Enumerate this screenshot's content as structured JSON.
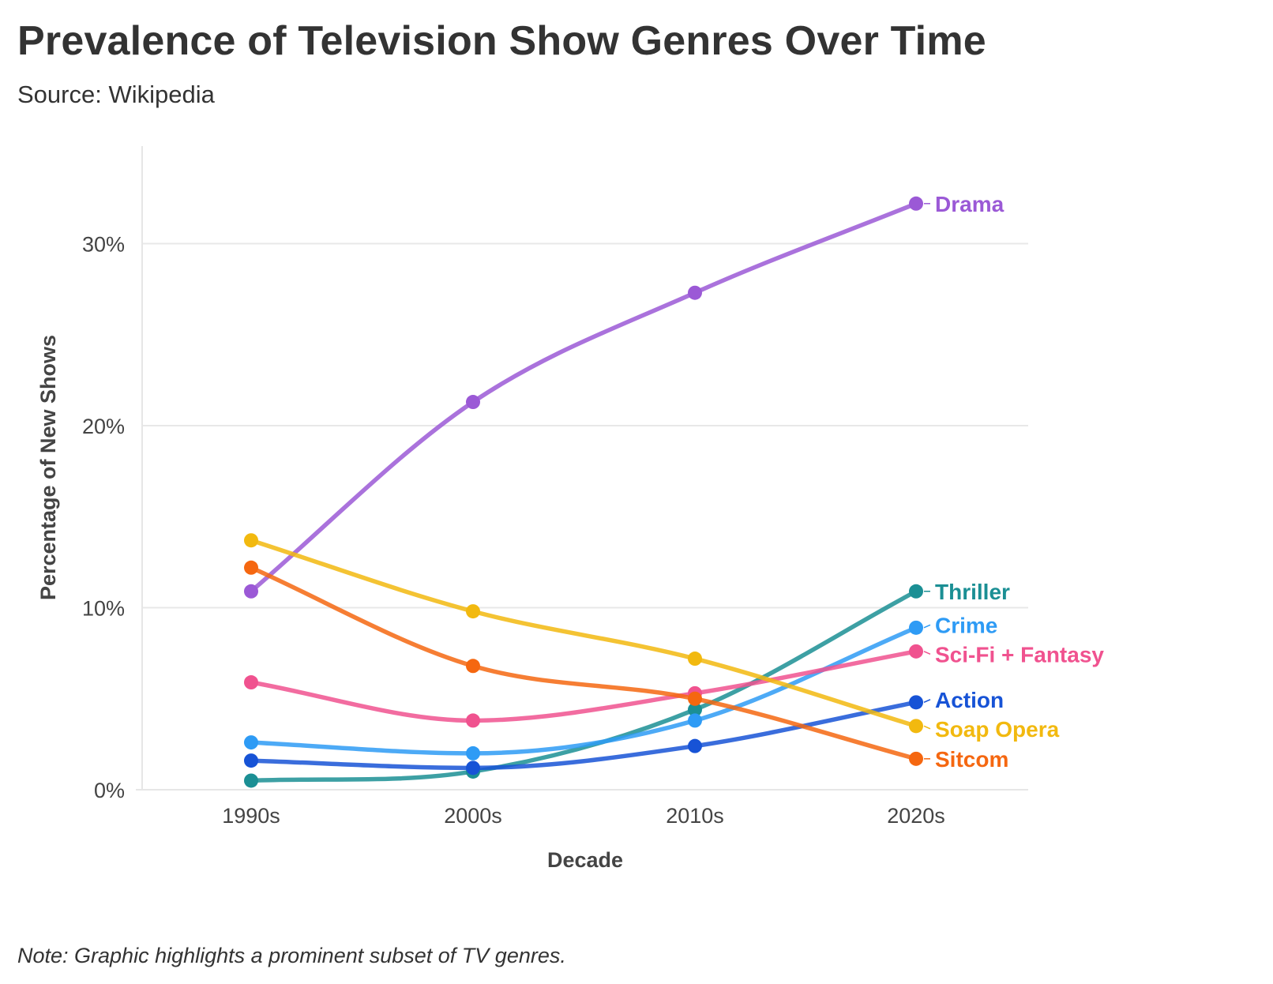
{
  "header": {
    "title": "Prevalence of Television Show Genres Over Time",
    "subtitle": "Source: Wikipedia"
  },
  "footer": {
    "note": "Note: Graphic highlights a prominent subset of TV genres."
  },
  "chart_data": {
    "type": "line",
    "title": "Prevalence of Television Show Genres Over Time",
    "subtitle": "Source: Wikipedia",
    "xlabel": "Decade",
    "ylabel": "Percentage of New Shows",
    "x": [
      "1990s",
      "2000s",
      "2010s",
      "2020s"
    ],
    "ylim": [
      0,
      35
    ],
    "yticks": [
      0,
      10,
      20,
      30
    ],
    "ytick_labels": [
      "0%",
      "10%",
      "20%",
      "30%"
    ],
    "grid": "horizontal",
    "legend": "direct labels at line ends (right)",
    "series": [
      {
        "name": "Drama",
        "color": "#9b59d6",
        "values": [
          10.9,
          21.3,
          27.3,
          32.2
        ]
      },
      {
        "name": "Thriller",
        "color": "#1b8f94",
        "values": [
          0.5,
          1.0,
          4.4,
          10.9
        ]
      },
      {
        "name": "Crime",
        "color": "#2e9bf5",
        "values": [
          2.6,
          2.0,
          3.8,
          8.9
        ]
      },
      {
        "name": "Sci-Fi + Fantasy",
        "color": "#f0528f",
        "values": [
          5.9,
          3.8,
          5.3,
          7.6
        ]
      },
      {
        "name": "Action",
        "color": "#1753d6",
        "values": [
          1.6,
          1.2,
          2.4,
          4.8
        ]
      },
      {
        "name": "Soap Opera",
        "color": "#f2b90f",
        "values": [
          13.7,
          9.8,
          7.2,
          3.5
        ]
      },
      {
        "name": "Sitcom",
        "color": "#f56710",
        "values": [
          12.2,
          6.8,
          5.0,
          1.7
        ]
      }
    ]
  }
}
